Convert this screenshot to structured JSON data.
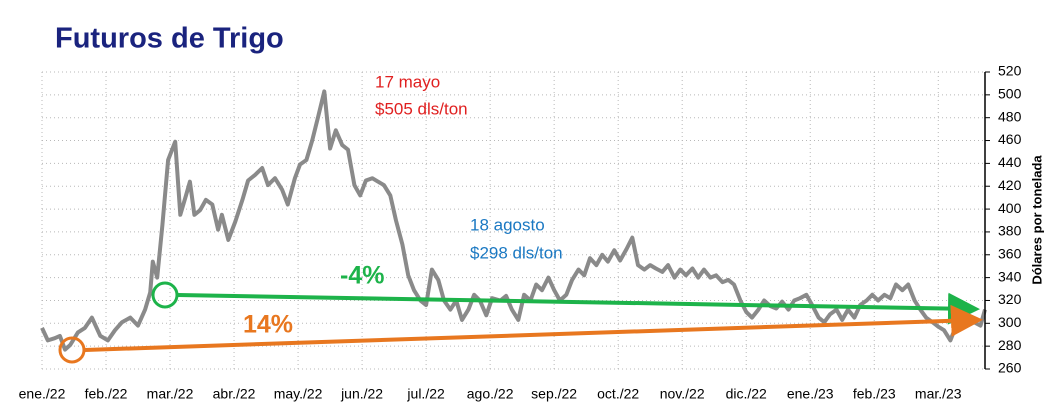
{
  "chart_data": {
    "type": "line",
    "title": "Futuros de Trigo",
    "y_axis_label": "Dólares por tonelada",
    "series": [
      {
        "color": "#8a8a8a",
        "x": [
          0,
          0.09,
          0.2,
          0.28,
          0.36,
          0.44,
          0.56,
          0.67,
          0.78,
          0.91,
          1.03,
          1.14,
          1.25,
          1.38,
          1.5,
          1.61,
          1.69,
          1.73,
          1.8,
          1.88,
          1.97,
          2.08,
          2.16,
          2.25,
          2.31,
          2.38,
          2.47,
          2.56,
          2.66,
          2.75,
          2.81,
          2.91,
          3.02,
          3.13,
          3.22,
          3.33,
          3.44,
          3.53,
          3.64,
          3.75,
          3.84,
          3.95,
          4.03,
          4.13,
          4.22,
          4.31,
          4.41,
          4.5,
          4.59,
          4.69,
          4.78,
          4.88,
          4.97,
          5.06,
          5.16,
          5.25,
          5.34,
          5.44,
          5.53,
          5.63,
          5.72,
          5.81,
          5.91,
          6,
          6.09,
          6.19,
          6.28,
          6.38,
          6.47,
          6.56,
          6.66,
          6.75,
          6.84,
          6.94,
          7.03,
          7.16,
          7.25,
          7.34,
          7.44,
          7.53,
          7.63,
          7.72,
          7.81,
          7.91,
          8,
          8.09,
          8.19,
          8.28,
          8.38,
          8.47,
          8.56,
          8.66,
          8.75,
          8.84,
          8.94,
          9.03,
          9.13,
          9.22,
          9.31,
          9.41,
          9.5,
          9.59,
          9.69,
          9.78,
          9.88,
          9.97,
          10.06,
          10.16,
          10.25,
          10.34,
          10.44,
          10.53,
          10.63,
          10.72,
          10.81,
          10.91,
          11,
          11.09,
          11.19,
          11.28,
          11.38,
          11.47,
          11.56,
          11.66,
          11.75,
          11.84,
          11.94,
          12.03,
          12.13,
          12.22,
          12.31,
          12.41,
          12.5,
          12.59,
          12.69,
          12.78,
          12.88,
          12.97,
          13.06,
          13.16,
          13.25,
          13.34,
          13.44,
          13.53,
          13.63,
          13.72,
          13.81,
          13.91,
          14,
          14.09,
          14.19,
          14.28,
          14.38,
          14.47,
          14.56,
          14.66,
          14.73
        ],
        "values": [
          296,
          285,
          287,
          289,
          277,
          281,
          292,
          296,
          305,
          289,
          285,
          294,
          301,
          305,
          298,
          312,
          327,
          354,
          340,
          386,
          443,
          459,
          395,
          412,
          424,
          395,
          399,
          408,
          404,
          382,
          395,
          373,
          389,
          408,
          425,
          430,
          436,
          421,
          427,
          417,
          404,
          427,
          439,
          443,
          460,
          480,
          503,
          453,
          469,
          456,
          452,
          421,
          412,
          425,
          427,
          424,
          421,
          412,
          390,
          369,
          342,
          329,
          320,
          316,
          347,
          338,
          320,
          312,
          320,
          303,
          312,
          325,
          320,
          307,
          322,
          320,
          324,
          312,
          303,
          325,
          320,
          334,
          329,
          340,
          329,
          320,
          325,
          338,
          347,
          342,
          357,
          351,
          360,
          354,
          364,
          355,
          365,
          375,
          351,
          347,
          351,
          348,
          345,
          351,
          340,
          347,
          342,
          348,
          340,
          347,
          340,
          342,
          336,
          338,
          334,
          320,
          310,
          305,
          312,
          320,
          315,
          313,
          319,
          312,
          320,
          322,
          325,
          316,
          305,
          301,
          308,
          312,
          303,
          312,
          305,
          316,
          320,
          325,
          320,
          325,
          322,
          334,
          329,
          334,
          320,
          312,
          305,
          301,
          297,
          294,
          285,
          298,
          303,
          305,
          301,
          298,
          312
        ]
      }
    ],
    "xlim": [
      0,
      14.73
    ],
    "xticks": [
      {
        "value": 0,
        "label": "ene./22"
      },
      {
        "value": 1,
        "label": "feb./22"
      },
      {
        "value": 2,
        "label": "mar./22"
      },
      {
        "value": 3,
        "label": "abr./22"
      },
      {
        "value": 4,
        "label": "may./22"
      },
      {
        "value": 5,
        "label": "jun./22"
      },
      {
        "value": 6,
        "label": "jul./22"
      },
      {
        "value": 7,
        "label": "ago./22"
      },
      {
        "value": 8,
        "label": "sep./22"
      },
      {
        "value": 9,
        "label": "oct./22"
      },
      {
        "value": 10,
        "label": "nov./22"
      },
      {
        "value": 11,
        "label": "dic./22"
      },
      {
        "value": 12,
        "label": "ene./23"
      },
      {
        "value": 13,
        "label": "feb./23"
      },
      {
        "value": 14,
        "label": "mar./23"
      }
    ],
    "ylim": [
      260,
      520
    ],
    "yticks": [
      260,
      280,
      300,
      320,
      340,
      360,
      380,
      400,
      420,
      440,
      460,
      480,
      500,
      520
    ],
    "grid": true,
    "annotations": [
      "17 mayo",
      "$505 dls/ton",
      "18 agosto",
      "$298 dls/ton",
      "-4%",
      "14%"
    ]
  }
}
